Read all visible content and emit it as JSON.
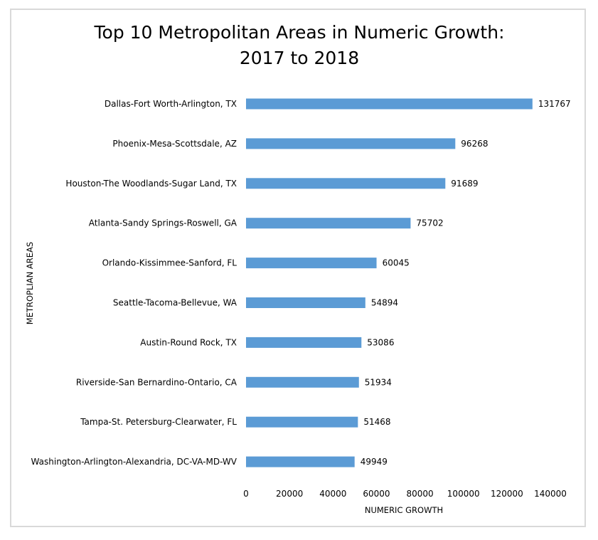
{
  "chart_data": {
    "type": "bar",
    "orientation": "horizontal",
    "title": [
      "Top 10 Metropolitan Areas in Numeric Growth:",
      "2017 to 2018"
    ],
    "xlabel": "NUMERIC GROWTH",
    "ylabel": "METROPLIAN AREAS",
    "categories": [
      "Dallas-Fort Worth-Arlington, TX",
      "Phoenix-Mesa-Scottsdale, AZ",
      "Houston-The Woodlands-Sugar Land, TX",
      "Atlanta-Sandy Springs-Roswell, GA",
      "Orlando-Kissimmee-Sanford, FL",
      "Seattle-Tacoma-Bellevue, WA",
      "Austin-Round Rock, TX",
      "Riverside-San Bernardino-Ontario, CA",
      "Tampa-St. Petersburg-Clearwater, FL",
      "Washington-Arlington-Alexandria, DC-VA-MD-WV"
    ],
    "values": [
      131767,
      96268,
      91689,
      75702,
      60045,
      54894,
      53086,
      51934,
      51468,
      49949
    ],
    "xlim": [
      0,
      140000
    ],
    "xticks": [
      "0",
      "20000",
      "40000",
      "60000",
      "80000",
      "100000",
      "120000",
      "140000"
    ],
    "grid": false,
    "legend": "none",
    "bar_color": "#5b9bd5",
    "data_labels": true
  }
}
